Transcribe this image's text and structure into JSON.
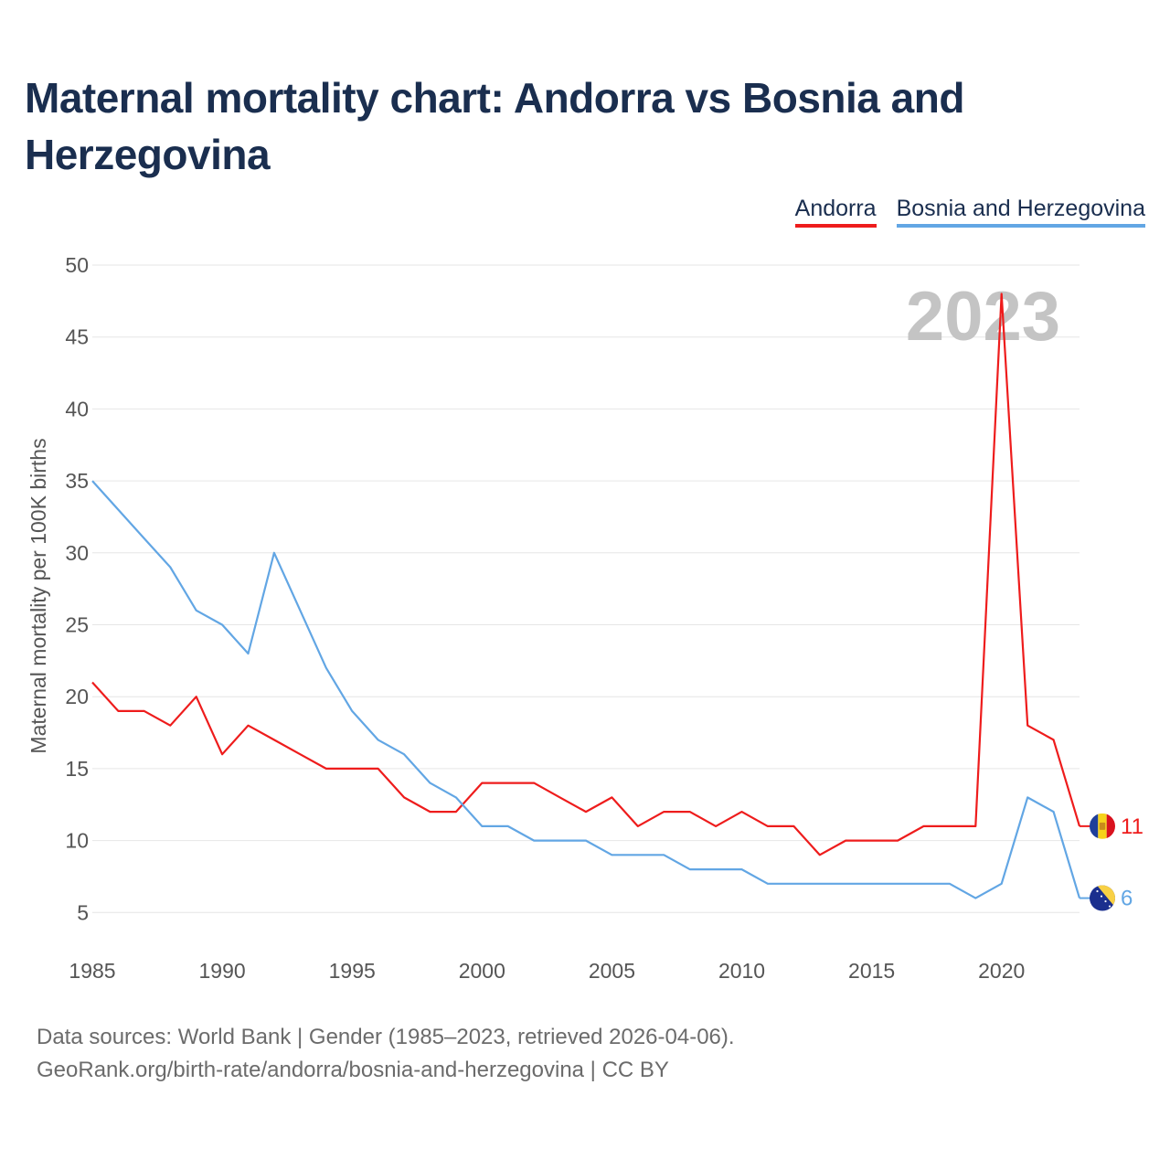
{
  "title": "Maternal mortality chart: Andorra vs Bosnia and Herzegovina",
  "year_watermark": "2023",
  "legend": [
    {
      "name": "Andorra",
      "color": "#ee1c1c"
    },
    {
      "name": "Bosnia and Herzegovina",
      "color": "#62a6e4"
    }
  ],
  "footer": {
    "line1": "Data sources: World Bank | Gender (1985–2023, retrieved 2026-04-06).",
    "line2": "GeoRank.org/birth-rate/andorra/bosnia-and-herzegovina | CC BY"
  },
  "chart_data": {
    "type": "line",
    "title": "Maternal mortality chart: Andorra vs Bosnia and Herzegovina",
    "xlabel": "",
    "ylabel": "Maternal mortality per 100K births",
    "x": [
      1985,
      1986,
      1987,
      1988,
      1989,
      1990,
      1991,
      1992,
      1993,
      1994,
      1995,
      1996,
      1997,
      1998,
      1999,
      2000,
      2001,
      2002,
      2003,
      2004,
      2005,
      2006,
      2007,
      2008,
      2009,
      2010,
      2011,
      2012,
      2013,
      2014,
      2015,
      2016,
      2017,
      2018,
      2019,
      2020,
      2021,
      2022,
      2023
    ],
    "xlim": [
      1985,
      2023
    ],
    "ylim": [
      2,
      50
    ],
    "xticks": [
      1985,
      1990,
      1995,
      2000,
      2005,
      2010,
      2015,
      2020
    ],
    "yticks": [
      5,
      10,
      15,
      20,
      25,
      30,
      35,
      40,
      45,
      50
    ],
    "grid": true,
    "legend_position": "top-right",
    "series": [
      {
        "name": "Andorra",
        "color": "#ee1c1c",
        "values": [
          21,
          19,
          19,
          18,
          20,
          16,
          18,
          17,
          16,
          15,
          15,
          15,
          13,
          12,
          12,
          14,
          14,
          14,
          13,
          12,
          13,
          11,
          12,
          12,
          11,
          12,
          11,
          11,
          9,
          10,
          10,
          10,
          11,
          11,
          11,
          48,
          18,
          17,
          11
        ],
        "end_label": "11"
      },
      {
        "name": "Bosnia and Herzegovina",
        "color": "#62a6e4",
        "values": [
          35,
          33,
          31,
          29,
          26,
          25,
          23,
          30,
          26,
          22,
          19,
          17,
          16,
          14,
          13,
          11,
          11,
          10,
          10,
          10,
          9,
          9,
          9,
          8,
          8,
          8,
          7,
          7,
          7,
          7,
          7,
          7,
          7,
          7,
          6,
          7,
          13,
          12,
          6
        ],
        "end_label": "6"
      }
    ]
  }
}
